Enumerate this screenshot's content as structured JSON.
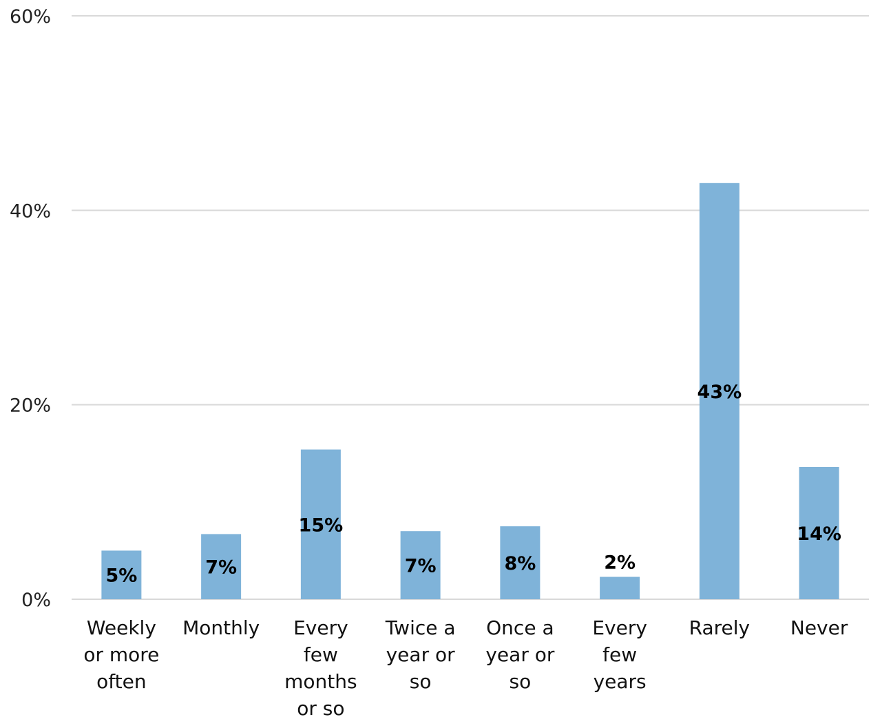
{
  "chart_data": {
    "type": "bar",
    "title": "",
    "xlabel": "",
    "ylabel": "",
    "categories": [
      [
        "Weekly",
        "or more",
        "often"
      ],
      [
        "Monthly"
      ],
      [
        "Every",
        "few",
        "months",
        "or so"
      ],
      [
        "Twice a",
        "year or",
        "so"
      ],
      [
        "Once a",
        "year or",
        "so"
      ],
      [
        "Every",
        "few",
        "years"
      ],
      [
        "Rarely"
      ],
      [
        "Never"
      ]
    ],
    "values": [
      5,
      7,
      15,
      7,
      8,
      2,
      43,
      14
    ],
    "bar_heights": [
      5.0,
      6.7,
      15.4,
      7.0,
      7.5,
      2.3,
      42.8,
      13.6
    ],
    "data_labels": [
      "5%",
      "7%",
      "15%",
      "7%",
      "8%",
      "2%",
      "43%",
      "14%"
    ],
    "y_ticks": [
      0,
      20,
      40,
      60
    ],
    "y_tick_labels": [
      "0%",
      "20%",
      "40%",
      "60%"
    ],
    "ylim": [
      0,
      60
    ],
    "grid": true,
    "legend": "none",
    "colors": {
      "bar": "#7fb3d9",
      "grid": "#d9d9d9"
    }
  }
}
